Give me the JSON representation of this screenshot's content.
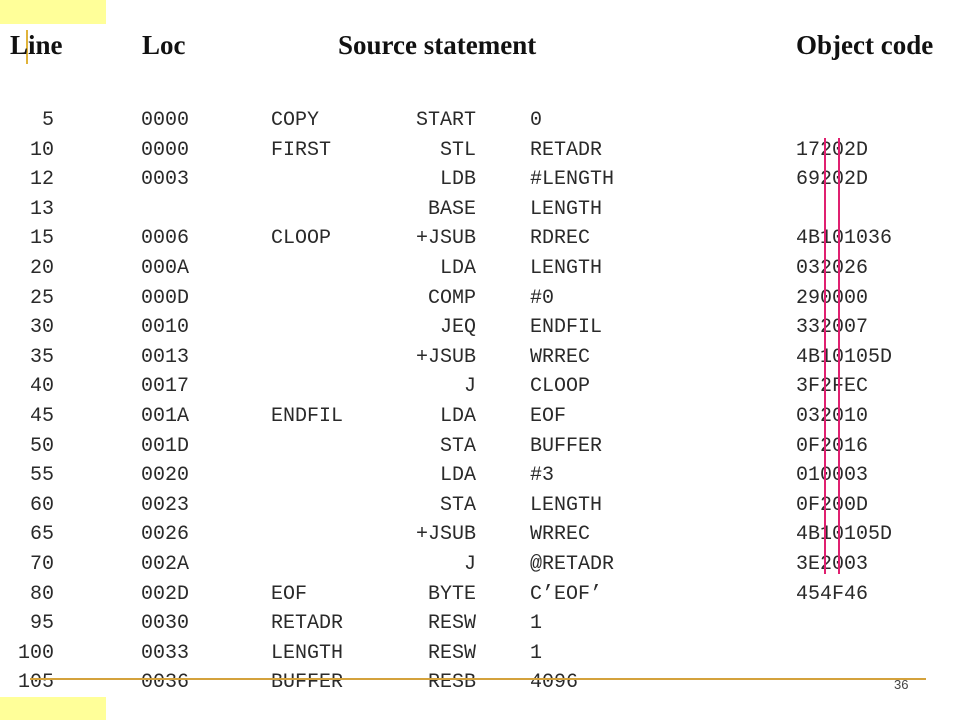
{
  "headers": {
    "line": "Line",
    "loc": "Loc",
    "source": "Source statement",
    "object": "Object code"
  },
  "rows": [
    {
      "line": "5",
      "loc": "0000",
      "label": "COPY",
      "op": "START",
      "operand": "0",
      "obj": ""
    },
    {
      "line": "10",
      "loc": "0000",
      "label": "FIRST",
      "op": "STL",
      "operand": "RETADR",
      "obj": "17202D"
    },
    {
      "line": "12",
      "loc": "0003",
      "label": "",
      "op": "LDB",
      "operand": "#LENGTH",
      "obj": "69202D"
    },
    {
      "line": "13",
      "loc": "",
      "label": "",
      "op": "BASE",
      "operand": "LENGTH",
      "obj": ""
    },
    {
      "line": "15",
      "loc": "0006",
      "label": "CLOOP",
      "op": "+JSUB",
      "operand": "RDREC",
      "obj": "4B101036"
    },
    {
      "line": "20",
      "loc": "000A",
      "label": "",
      "op": "LDA",
      "operand": "LENGTH",
      "obj": "032026"
    },
    {
      "line": "25",
      "loc": "000D",
      "label": "",
      "op": "COMP",
      "operand": "#0",
      "obj": "290000"
    },
    {
      "line": "30",
      "loc": "0010",
      "label": "",
      "op": "JEQ",
      "operand": "ENDFIL",
      "obj": "332007"
    },
    {
      "line": "35",
      "loc": "0013",
      "label": "",
      "op": "+JSUB",
      "operand": "WRREC",
      "obj": "4B10105D"
    },
    {
      "line": "40",
      "loc": "0017",
      "label": "",
      "op": "J",
      "operand": "CLOOP",
      "obj": "3F2FEC"
    },
    {
      "line": "45",
      "loc": "001A",
      "label": "ENDFIL",
      "op": "LDA",
      "operand": "EOF",
      "obj": "032010"
    },
    {
      "line": "50",
      "loc": "001D",
      "label": "",
      "op": "STA",
      "operand": "BUFFER",
      "obj": "0F2016"
    },
    {
      "line": "55",
      "loc": "0020",
      "label": "",
      "op": "LDA",
      "operand": "#3",
      "obj": "010003"
    },
    {
      "line": "60",
      "loc": "0023",
      "label": "",
      "op": "STA",
      "operand": "LENGTH",
      "obj": "0F200D"
    },
    {
      "line": "65",
      "loc": "0026",
      "label": "",
      "op": "+JSUB",
      "operand": "WRREC",
      "obj": "4B10105D"
    },
    {
      "line": "70",
      "loc": "002A",
      "label": "",
      "op": "J",
      "operand": "@RETADR",
      "obj": "3E2003"
    },
    {
      "line": "80",
      "loc": "002D",
      "label": "EOF",
      "op": "BYTE",
      "operand": "C’EOF’",
      "obj": "454F46"
    },
    {
      "line": "95",
      "loc": "0030",
      "label": "RETADR",
      "op": "RESW",
      "operand": "1",
      "obj": ""
    },
    {
      "line": "100",
      "loc": "0033",
      "label": "LENGTH",
      "op": "RESW",
      "operand": "1",
      "obj": ""
    },
    {
      "line": "105",
      "loc": "0036",
      "label": "BUFFER",
      "op": "RESB",
      "operand": "4096",
      "obj": ""
    }
  ],
  "page_number": "36",
  "colors": {
    "accent_block": "#ffff99",
    "rule": "#d4a23c",
    "highlight_line": "#e02070"
  }
}
